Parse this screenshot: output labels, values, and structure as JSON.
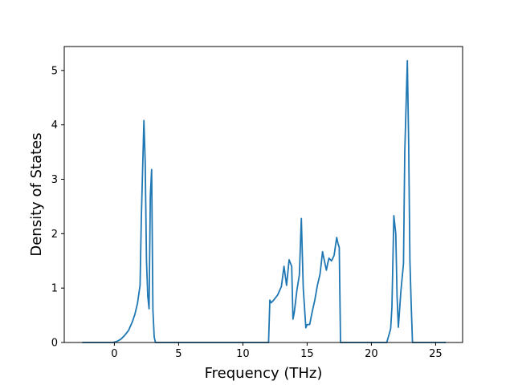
{
  "chart_data": {
    "type": "line",
    "title": "",
    "xlabel": "Frequency (THz)",
    "ylabel": "Density of States",
    "xlim": [
      -3.9,
      27.1
    ],
    "ylim": [
      0,
      5.44
    ],
    "xticks": [
      0,
      5,
      10,
      15,
      20,
      25
    ],
    "yticks": [
      0,
      1,
      2,
      3,
      4,
      5
    ],
    "grid": false,
    "legend": "none",
    "series": [
      {
        "color": "#1f77b4",
        "x": [
          -2.5,
          -0.1,
          0.2,
          0.5,
          0.8,
          1.1,
          1.4,
          1.6,
          1.8,
          2.0,
          2.1,
          2.3,
          2.4,
          2.5,
          2.6,
          2.7,
          2.8,
          2.9,
          3.0,
          3.1,
          3.2,
          3.3,
          12.0,
          12.1,
          12.2,
          12.4,
          12.7,
          13.0,
          13.2,
          13.4,
          13.6,
          13.8,
          13.9,
          14.0,
          14.2,
          14.4,
          14.55,
          14.7,
          14.9,
          15.0,
          15.2,
          15.4,
          15.6,
          15.8,
          16.0,
          16.1,
          16.2,
          16.3,
          16.5,
          16.6,
          16.7,
          16.9,
          17.1,
          17.3,
          17.4,
          17.5,
          17.6,
          21.2,
          21.5,
          21.6,
          21.75,
          21.9,
          22.0,
          22.1,
          22.3,
          22.5,
          22.6,
          22.8,
          22.9,
          23.0,
          23.1,
          23.2,
          23.3,
          23.5,
          25.8
        ],
        "y": [
          0,
          0,
          0.02,
          0.06,
          0.13,
          0.22,
          0.38,
          0.52,
          0.72,
          1.05,
          2.3,
          4.08,
          3.3,
          1.5,
          0.85,
          0.62,
          2.7,
          3.18,
          0.6,
          0.1,
          0,
          0,
          0,
          0.78,
          0.73,
          0.78,
          0.87,
          1.03,
          1.4,
          1.05,
          1.52,
          1.4,
          0.43,
          0.55,
          0.95,
          1.25,
          2.28,
          1.0,
          0.27,
          0.33,
          0.33,
          0.57,
          0.78,
          1.05,
          1.25,
          1.45,
          1.67,
          1.55,
          1.33,
          1.45,
          1.55,
          1.5,
          1.6,
          1.93,
          1.82,
          1.75,
          0,
          0,
          0.25,
          0.65,
          2.33,
          2.0,
          0.85,
          0.28,
          0.95,
          1.45,
          3.5,
          5.18,
          3.7,
          1.5,
          0.7,
          0,
          0,
          0,
          0
        ]
      }
    ]
  }
}
